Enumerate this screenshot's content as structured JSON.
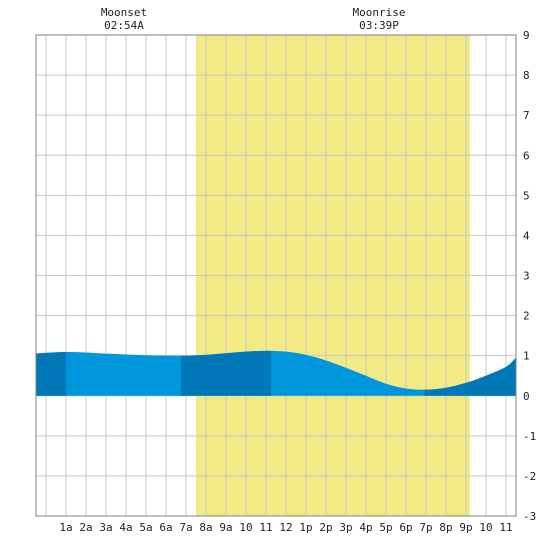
{
  "chart_data": {
    "type": "area",
    "title": "",
    "xlabel": "",
    "ylabel": "",
    "x_range_hours": [
      -1.5,
      22.5
    ],
    "ylim": [
      -3,
      9
    ],
    "y_ticks": [
      "-3",
      "-2",
      "-1",
      "0",
      "1",
      "2",
      "3",
      "4",
      "5",
      "6",
      "7",
      "8",
      "9"
    ],
    "x_tick_labels": [
      "1a",
      "2a",
      "3a",
      "4a",
      "5a",
      "6a",
      "7a",
      "8a",
      "9a",
      "10",
      "11",
      "12",
      "1p",
      "2p",
      "3p",
      "4p",
      "5p",
      "6p",
      "7p",
      "8p",
      "9p",
      "10",
      "11"
    ],
    "grid": true,
    "daylight": {
      "start_hour": 6.5,
      "end_hour": 20.2,
      "color": "#f2ea84"
    },
    "annotations": [
      {
        "label": "Moonset",
        "time": "02:54A",
        "hour": 2.9
      },
      {
        "label": "Moonrise",
        "time": "03:39P",
        "hour": 15.65
      }
    ],
    "series": [
      {
        "x": [
          -1.5,
          -1,
          0,
          1,
          2,
          3,
          4,
          5,
          6,
          7,
          8,
          9,
          10,
          11,
          12,
          13,
          14,
          15,
          16,
          17,
          18,
          19,
          20,
          21,
          22,
          22.5
        ],
        "values": [
          1.05,
          1.07,
          1.09,
          1.08,
          1.05,
          1.03,
          1.01,
          1.0,
          1.0,
          1.02,
          1.06,
          1.1,
          1.12,
          1.1,
          1.02,
          0.88,
          0.7,
          0.5,
          0.3,
          0.18,
          0.15,
          0.2,
          0.32,
          0.5,
          0.72,
          0.95
        ]
      }
    ],
    "shade_bands": [
      {
        "from_hour": -1.5,
        "to_hour": 0.0
      },
      {
        "from_hour": 5.75,
        "to_hour": 10.25
      },
      {
        "from_hour": 17.9,
        "to_hour": 22.5
      }
    ],
    "colors": {
      "fill": "#0096dc",
      "fill_dark": "#0078b8",
      "grid": "#c8c8c8",
      "frame": "#808080"
    }
  }
}
